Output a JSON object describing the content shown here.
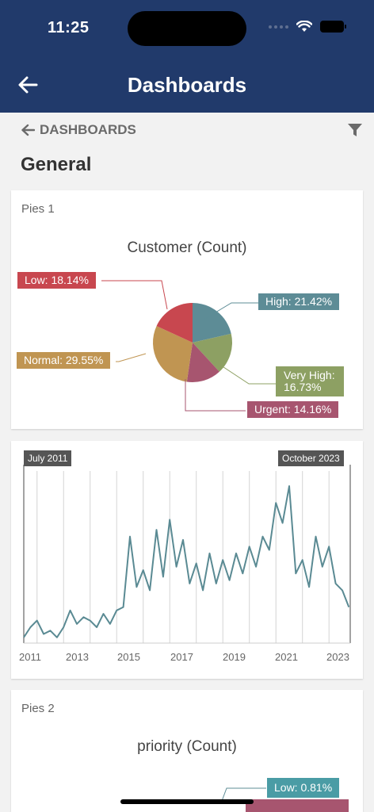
{
  "status_bar": {
    "time": "11:25"
  },
  "header": {
    "title": "Dashboards"
  },
  "breadcrumb": {
    "label": "DASHBOARDS"
  },
  "section": {
    "title": "General"
  },
  "colors": {
    "header_bg": "#213a6b",
    "low": "#c8474f",
    "high": "#5d8c96",
    "very_high": "#8da063",
    "urgent": "#a7556f",
    "normal": "#c09552",
    "line": "#5a8a93"
  },
  "pies1": {
    "card_title": "Pies 1",
    "chart_data": {
      "type": "pie",
      "title": "Customer (Count)",
      "slices": [
        {
          "label": "High: 21.42%",
          "value": 21.42
        },
        {
          "label": "Very High: 16.73%",
          "value": 16.73
        },
        {
          "label": "Urgent: 14.16%",
          "value": 14.16
        },
        {
          "label": "Normal: 29.55%",
          "value": 29.55
        },
        {
          "label": "Low: 18.14%",
          "value": 18.14
        }
      ]
    }
  },
  "timeline": {
    "range_start": "July 2011",
    "range_end": "October 2023",
    "chart_data": {
      "type": "line",
      "x_tick_labels": [
        "2011",
        "2013",
        "2015",
        "2017",
        "2019",
        "2021",
        "2023"
      ],
      "xlim": [
        2011.5,
        2023.8
      ],
      "ylim": [
        0,
        100
      ],
      "series": [
        {
          "x": [
            2011.5,
            2011.75,
            2012.0,
            2012.25,
            2012.5,
            2012.75,
            2013.0,
            2013.25,
            2013.5,
            2013.75,
            2014.0,
            2014.25,
            2014.5,
            2014.75,
            2015.0,
            2015.25,
            2015.5,
            2015.75,
            2016.0,
            2016.25,
            2016.5,
            2016.75,
            2017.0,
            2017.25,
            2017.5,
            2017.75,
            2018.0,
            2018.25,
            2018.5,
            2018.75,
            2019.0,
            2019.25,
            2019.5,
            2019.75,
            2020.0,
            2020.25,
            2020.5,
            2020.75,
            2021.0,
            2021.25,
            2021.5,
            2021.75,
            2022.0,
            2022.25,
            2022.5,
            2022.75,
            2023.0,
            2023.25,
            2023.5,
            2023.75
          ],
          "values": [
            2,
            8,
            12,
            4,
            6,
            2,
            8,
            18,
            10,
            14,
            12,
            8,
            16,
            10,
            18,
            20,
            62,
            32,
            42,
            30,
            66,
            38,
            72,
            44,
            60,
            34,
            46,
            30,
            52,
            34,
            48,
            36,
            52,
            40,
            56,
            44,
            62,
            54,
            82,
            70,
            92,
            40,
            48,
            32,
            62,
            44,
            56,
            34,
            30,
            20
          ]
        }
      ]
    }
  },
  "pies2": {
    "card_title": "Pies 2",
    "chart_data": {
      "type": "pie",
      "title": "priority (Count)",
      "slices": [
        {
          "label": "Low: 0.81%",
          "value": 0.81
        }
      ]
    }
  }
}
